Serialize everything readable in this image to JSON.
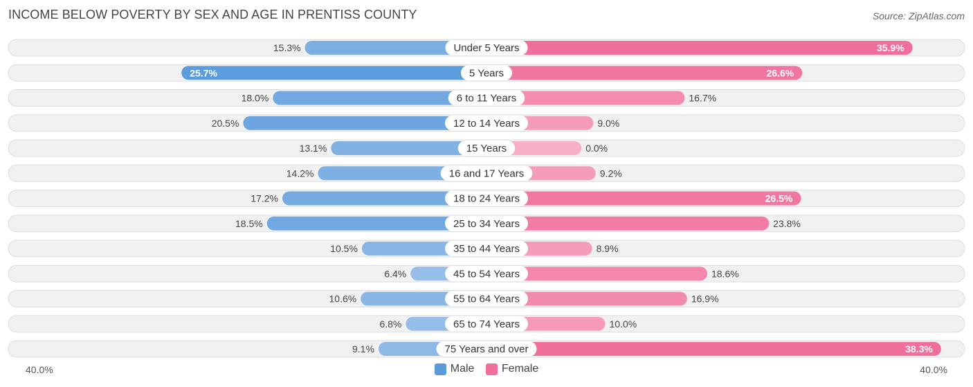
{
  "header": {
    "title": "INCOME BELOW POVERTY BY SEX AND AGE IN PRENTISS COUNTY",
    "source": "Source: ZipAtlas.com"
  },
  "axis": {
    "left_label": "40.0%",
    "right_label": "40.0%"
  },
  "legend": {
    "male_label": "Male",
    "female_label": "Female"
  },
  "colors": {
    "male_strong": "#5b9bdc",
    "male_light": "#a9c9ec",
    "female_strong": "#f06e9c",
    "female_light": "#f8b0c8"
  },
  "chart_data": {
    "type": "bar",
    "orientation": "horizontal-diverging",
    "title": "INCOME BELOW POVERTY BY SEX AND AGE IN PRENTISS COUNTY",
    "categories": [
      "Under 5 Years",
      "5 Years",
      "6 to 11 Years",
      "12 to 14 Years",
      "15 Years",
      "16 and 17 Years",
      "18 to 24 Years",
      "25 to 34 Years",
      "35 to 44 Years",
      "45 to 54 Years",
      "55 to 64 Years",
      "65 to 74 Years",
      "75 Years and over"
    ],
    "series": [
      {
        "name": "Male",
        "values": [
          15.3,
          25.7,
          18.0,
          20.5,
          13.1,
          14.2,
          17.2,
          18.5,
          10.5,
          6.4,
          10.6,
          6.8,
          9.1
        ],
        "labels": [
          "15.3%",
          "25.7%",
          "18.0%",
          "20.5%",
          "13.1%",
          "14.2%",
          "17.2%",
          "18.5%",
          "10.5%",
          "6.4%",
          "10.6%",
          "6.8%",
          "9.1%"
        ]
      },
      {
        "name": "Female",
        "values": [
          35.9,
          26.6,
          16.7,
          9.0,
          0.0,
          9.2,
          26.5,
          23.8,
          8.9,
          18.6,
          16.9,
          10.0,
          38.3
        ],
        "labels": [
          "35.9%",
          "26.6%",
          "16.7%",
          "9.0%",
          "0.0%",
          "9.2%",
          "26.5%",
          "23.8%",
          "8.9%",
          "18.6%",
          "16.9%",
          "10.0%",
          "38.3%"
        ]
      }
    ],
    "xlim": [
      -40,
      40
    ],
    "unit": "%",
    "legend_position": "bottom-center"
  }
}
